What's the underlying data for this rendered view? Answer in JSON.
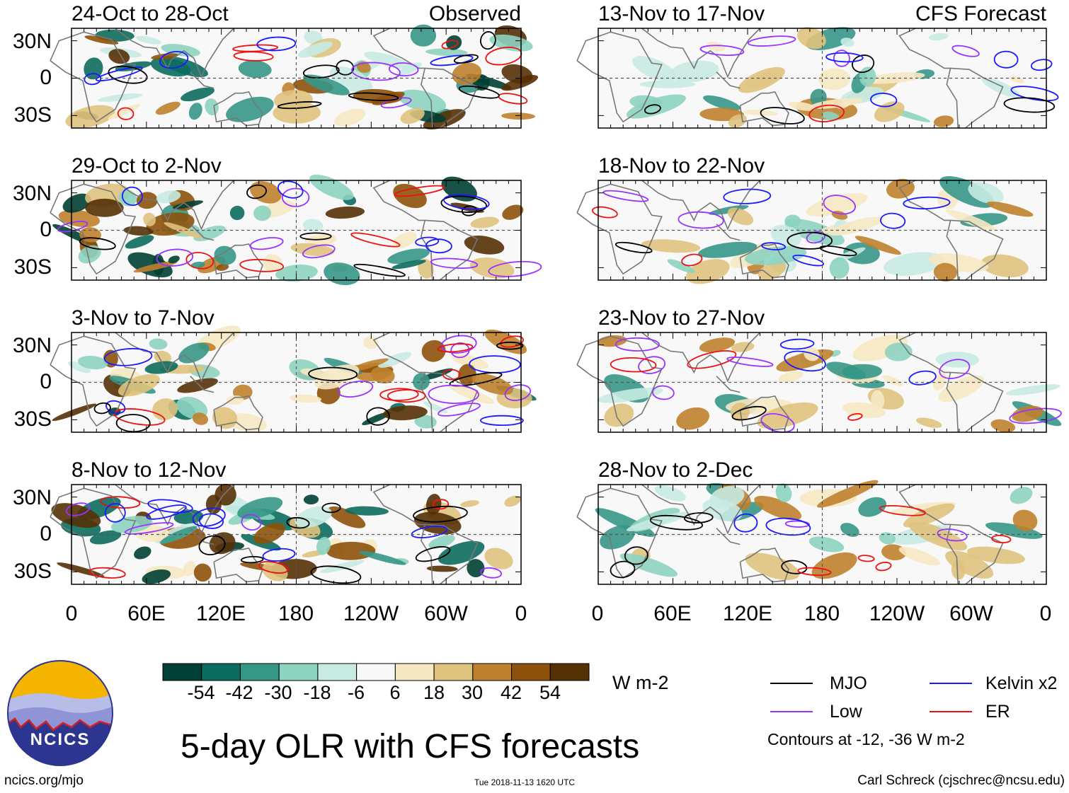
{
  "chart_data": {
    "type": "heatmap",
    "title": "5-day OLR with CFS forecasts",
    "units": "W m-2",
    "column_tags": {
      "left": "Observed",
      "right": "CFS Forecast"
    },
    "longitude_ticks": [
      "0",
      "60E",
      "120E",
      "180",
      "120W",
      "60W",
      "0"
    ],
    "latitude_ticks": [
      "30N",
      "0",
      "30S"
    ],
    "lat_range": [
      -40,
      40
    ],
    "lon_range": [
      0,
      360
    ],
    "panels": [
      {
        "title": "24-Oct to 28-Oct",
        "kind": "Observed"
      },
      {
        "title": "29-Oct to 2-Nov",
        "kind": "Observed"
      },
      {
        "title": "3-Nov to 7-Nov",
        "kind": "Observed"
      },
      {
        "title": "8-Nov to 12-Nov",
        "kind": "Observed"
      },
      {
        "title": "13-Nov to 17-Nov",
        "kind": "CFS Forecast"
      },
      {
        "title": "18-Nov to 22-Nov",
        "kind": "CFS Forecast"
      },
      {
        "title": "23-Nov to 27-Nov",
        "kind": "CFS Forecast"
      },
      {
        "title": "28-Nov to 2-Dec",
        "kind": "CFS Forecast"
      }
    ],
    "colorbar": {
      "labels": [
        "-54",
        "-42",
        "-30",
        "-18",
        "-6",
        "6",
        "18",
        "30",
        "42",
        "54"
      ],
      "colors": [
        "#003f33",
        "#0b6c5d",
        "#369787",
        "#8dd3c0",
        "#c7eae2",
        "#f8f8f8",
        "#f6e8c3",
        "#dfc27d",
        "#bf812d",
        "#8c510a",
        "#543005"
      ]
    },
    "contour_legend": {
      "items": [
        {
          "label": "MJO",
          "color": "#000000"
        },
        {
          "label": "Kelvin x2",
          "color": "#1a1aff"
        },
        {
          "label": "Low",
          "color": "#9933ff"
        },
        {
          "label": "ER",
          "color": "#ee1111"
        }
      ],
      "note": "Contours at -12, -36 W m-2"
    }
  },
  "logo": {
    "text": "NCICS"
  },
  "footer": {
    "url": "ncics.org/mjo",
    "timestamp": "Tue 2018-11-13 1620 UTC",
    "credit": "Carl Schreck (cjschrec@ncsu.edu)"
  }
}
